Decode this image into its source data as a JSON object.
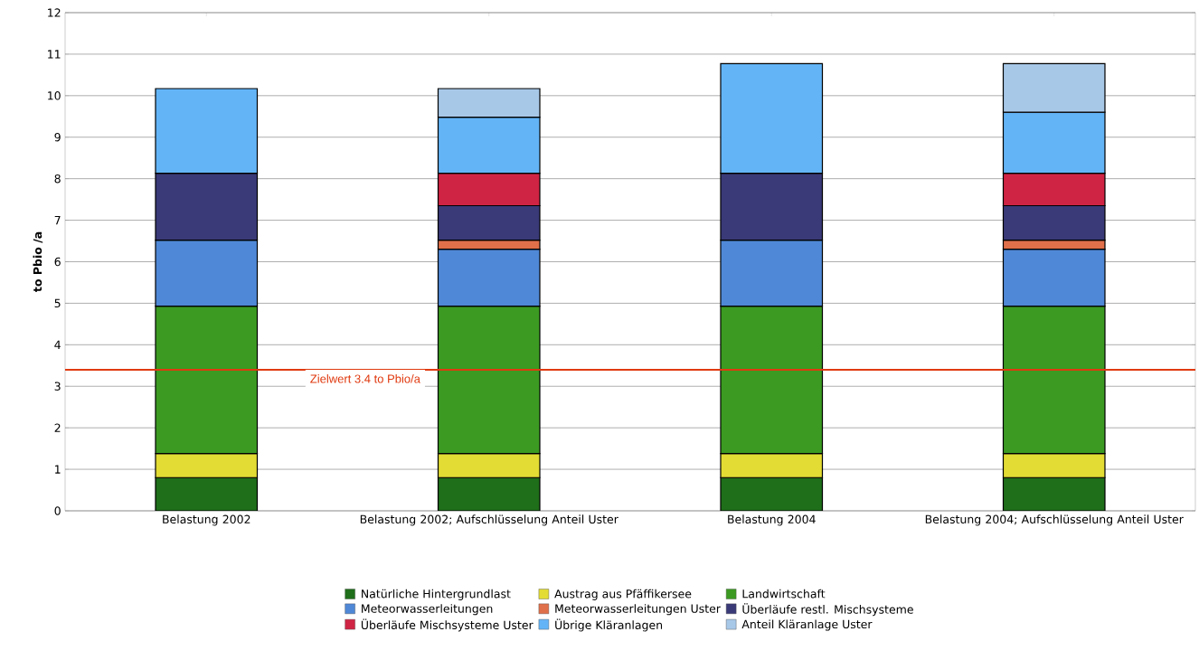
{
  "chart_data": {
    "type": "bar",
    "stacked": true,
    "categories": [
      "Belastung 2002",
      "Belastung 2002; Aufschlüsselung Anteil Uster",
      "Belastung 2004",
      "Belastung 2004; Aufschlüsselung Anteil Uster"
    ],
    "ylabel": "to Pbio /a",
    "ylim": [
      0,
      12
    ],
    "yticks": [
      0,
      1,
      2,
      3,
      4,
      5,
      6,
      7,
      8,
      9,
      10,
      11,
      12
    ],
    "grid": "y",
    "legend": "bottom",
    "ref_lines": [
      {
        "axis": "y",
        "value": 3.4,
        "label": "Zielwert 3.4 to Pbio/a",
        "color": "#e03a10"
      }
    ],
    "series": [
      {
        "name": "Natürliche Hintergrundlast",
        "color": "#1f6e1a",
        "values": [
          0.8,
          0.8,
          0.8,
          0.8
        ]
      },
      {
        "name": "Austrag aus Pfäffikersee",
        "color": "#e2dc34",
        "values": [
          0.58,
          0.58,
          0.58,
          0.58
        ]
      },
      {
        "name": "Landwirtschaft",
        "color": "#3c9a22",
        "values": [
          3.55,
          3.55,
          3.55,
          3.55
        ]
      },
      {
        "name": "Meteorwasserleitungen",
        "color": "#4f88d6",
        "values": [
          1.59,
          1.37,
          1.59,
          1.37
        ]
      },
      {
        "name": "Meteorwasserleitungen Uster",
        "color": "#e0704a",
        "values": [
          null,
          0.22,
          null,
          0.22
        ]
      },
      {
        "name": "Überläufe restl. Mischsysteme",
        "color": "#3a3a78",
        "values": [
          1.61,
          0.83,
          1.61,
          0.83
        ]
      },
      {
        "name": "Überläufe Mischsysteme Uster",
        "color": "#d02444",
        "values": [
          null,
          0.78,
          null,
          0.78
        ]
      },
      {
        "name": "Übrige Kläranlagen",
        "color": "#63b4f7",
        "values": [
          2.04,
          1.35,
          2.64,
          1.47
        ]
      },
      {
        "name": "Anteil Kläranlage Uster",
        "color": "#a8c8e8",
        "values": [
          null,
          0.69,
          null,
          1.17
        ]
      }
    ]
  }
}
